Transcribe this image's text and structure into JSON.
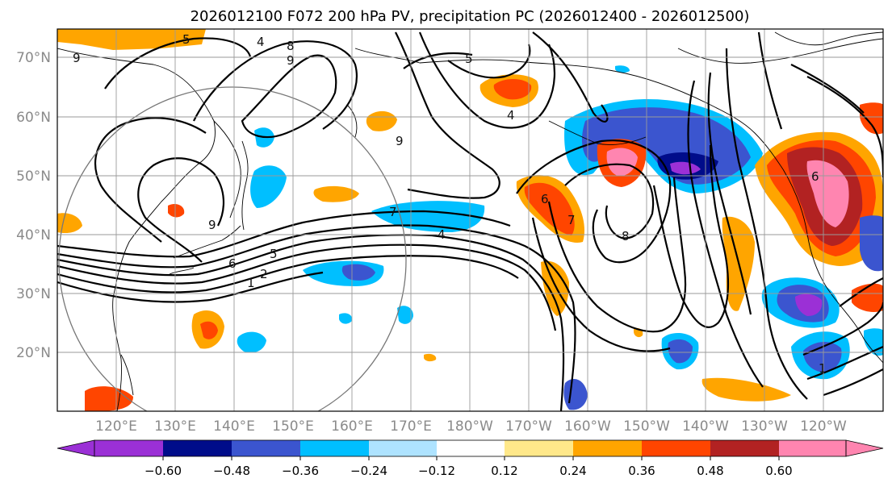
{
  "title": "2026012100 F072 200 hPa PV, precipitation PC (2026012400 - 2026012500)",
  "latitude_labels": [
    "70°N",
    "60°N",
    "50°N",
    "40°N",
    "30°N",
    "20°N"
  ],
  "longitude_labels": [
    "120°E",
    "130°E",
    "140°E",
    "150°E",
    "160°E",
    "170°E",
    "180°W",
    "170°W",
    "160°W",
    "150°W",
    "140°W",
    "130°W",
    "120°W"
  ],
  "colorbar": {
    "tick_labels": [
      "−0.60",
      "−0.48",
      "−0.36",
      "−0.24",
      "−0.12",
      "0.12",
      "0.24",
      "0.36",
      "0.48",
      "0.60"
    ],
    "colors": [
      "#9b30d6",
      "#000c8a",
      "#3b55cf",
      "#00bfff",
      "#aee3ff",
      "#ffffff",
      "#ffe88a",
      "#ffa500",
      "#ff4500",
      "#b22222",
      "#ff85b0"
    ]
  },
  "contour_labels": [
    "5",
    "4",
    "8",
    "9",
    "9",
    "5",
    "4",
    "7",
    "4",
    "2",
    "1",
    "5",
    "6",
    "9",
    "9",
    "6",
    "7",
    "8",
    "6",
    "1"
  ]
}
